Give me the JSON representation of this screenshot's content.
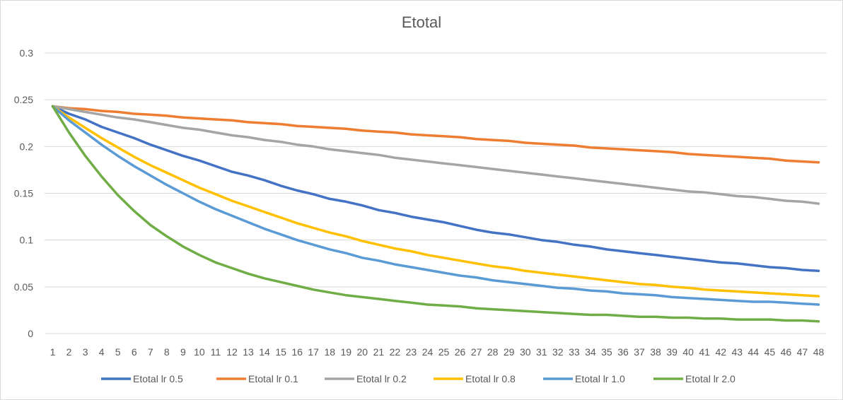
{
  "chart_data": {
    "type": "line",
    "title": "Etotal",
    "xlabel": "",
    "ylabel": "",
    "ylim": [
      0,
      0.3
    ],
    "yticks": [
      "0",
      "0.05",
      "0.1",
      "0.15",
      "0.2",
      "0.25",
      "0.3"
    ],
    "x": [
      1,
      2,
      3,
      4,
      5,
      6,
      7,
      8,
      9,
      10,
      11,
      12,
      13,
      14,
      15,
      16,
      17,
      18,
      19,
      20,
      21,
      22,
      23,
      24,
      25,
      26,
      27,
      28,
      29,
      30,
      31,
      32,
      33,
      34,
      35,
      36,
      37,
      38,
      39,
      40,
      41,
      42,
      43,
      44,
      45,
      46,
      47,
      48
    ],
    "grid": true,
    "legend": "bottom",
    "series": [
      {
        "name": "Etotal lr 0.5",
        "color": "#4472C4",
        "values": [
          0.243,
          0.235,
          0.229,
          0.221,
          0.215,
          0.209,
          0.202,
          0.196,
          0.19,
          0.185,
          0.179,
          0.173,
          0.169,
          0.164,
          0.158,
          0.153,
          0.149,
          0.144,
          0.141,
          0.137,
          0.132,
          0.129,
          0.125,
          0.122,
          0.119,
          0.115,
          0.111,
          0.108,
          0.106,
          0.103,
          0.1,
          0.098,
          0.095,
          0.093,
          0.09,
          0.088,
          0.086,
          0.084,
          0.082,
          0.08,
          0.078,
          0.076,
          0.075,
          0.073,
          0.071,
          0.07,
          0.068,
          0.067
        ]
      },
      {
        "name": "Etotal lr 0.1",
        "color": "#ED7D31",
        "values": [
          0.243,
          0.241,
          0.24,
          0.238,
          0.237,
          0.235,
          0.234,
          0.233,
          0.231,
          0.23,
          0.229,
          0.228,
          0.226,
          0.225,
          0.224,
          0.222,
          0.221,
          0.22,
          0.219,
          0.217,
          0.216,
          0.215,
          0.213,
          0.212,
          0.211,
          0.21,
          0.208,
          0.207,
          0.206,
          0.204,
          0.203,
          0.202,
          0.201,
          0.199,
          0.198,
          0.197,
          0.196,
          0.195,
          0.194,
          0.192,
          0.191,
          0.19,
          0.189,
          0.188,
          0.187,
          0.185,
          0.184,
          0.183
        ]
      },
      {
        "name": "Etotal lr 0.2",
        "color": "#A5A5A5",
        "values": [
          0.243,
          0.24,
          0.237,
          0.234,
          0.231,
          0.229,
          0.226,
          0.223,
          0.22,
          0.218,
          0.215,
          0.212,
          0.21,
          0.207,
          0.205,
          0.202,
          0.2,
          0.197,
          0.195,
          0.193,
          0.191,
          0.188,
          0.186,
          0.184,
          0.182,
          0.18,
          0.178,
          0.176,
          0.174,
          0.172,
          0.17,
          0.168,
          0.166,
          0.164,
          0.162,
          0.16,
          0.158,
          0.156,
          0.154,
          0.152,
          0.151,
          0.149,
          0.147,
          0.146,
          0.144,
          0.142,
          0.141,
          0.139
        ]
      },
      {
        "name": "Etotal lr 0.8",
        "color": "#FFC000",
        "values": [
          0.243,
          0.231,
          0.22,
          0.209,
          0.199,
          0.189,
          0.18,
          0.172,
          0.164,
          0.156,
          0.149,
          0.142,
          0.136,
          0.13,
          0.124,
          0.118,
          0.113,
          0.108,
          0.104,
          0.099,
          0.095,
          0.091,
          0.088,
          0.084,
          0.081,
          0.078,
          0.075,
          0.072,
          0.07,
          0.067,
          0.065,
          0.063,
          0.061,
          0.059,
          0.057,
          0.055,
          0.053,
          0.052,
          0.05,
          0.049,
          0.047,
          0.046,
          0.045,
          0.044,
          0.043,
          0.042,
          0.041,
          0.04
        ]
      },
      {
        "name": "Etotal lr 1.0",
        "color": "#5B9BD5",
        "values": [
          0.243,
          0.228,
          0.215,
          0.202,
          0.19,
          0.179,
          0.169,
          0.159,
          0.15,
          0.141,
          0.133,
          0.126,
          0.119,
          0.112,
          0.106,
          0.1,
          0.095,
          0.09,
          0.086,
          0.081,
          0.078,
          0.074,
          0.071,
          0.068,
          0.065,
          0.062,
          0.06,
          0.057,
          0.055,
          0.053,
          0.051,
          0.049,
          0.048,
          0.046,
          0.045,
          0.043,
          0.042,
          0.041,
          0.039,
          0.038,
          0.037,
          0.036,
          0.035,
          0.034,
          0.034,
          0.033,
          0.032,
          0.031
        ]
      },
      {
        "name": "Etotal lr 2.0",
        "color": "#70AD47",
        "values": [
          0.243,
          0.215,
          0.19,
          0.168,
          0.148,
          0.131,
          0.116,
          0.104,
          0.093,
          0.084,
          0.076,
          0.07,
          0.064,
          0.059,
          0.055,
          0.051,
          0.047,
          0.044,
          0.041,
          0.039,
          0.037,
          0.035,
          0.033,
          0.031,
          0.03,
          0.029,
          0.027,
          0.026,
          0.025,
          0.024,
          0.023,
          0.022,
          0.021,
          0.02,
          0.02,
          0.019,
          0.018,
          0.018,
          0.017,
          0.017,
          0.016,
          0.016,
          0.015,
          0.015,
          0.015,
          0.014,
          0.014,
          0.013
        ]
      }
    ]
  }
}
